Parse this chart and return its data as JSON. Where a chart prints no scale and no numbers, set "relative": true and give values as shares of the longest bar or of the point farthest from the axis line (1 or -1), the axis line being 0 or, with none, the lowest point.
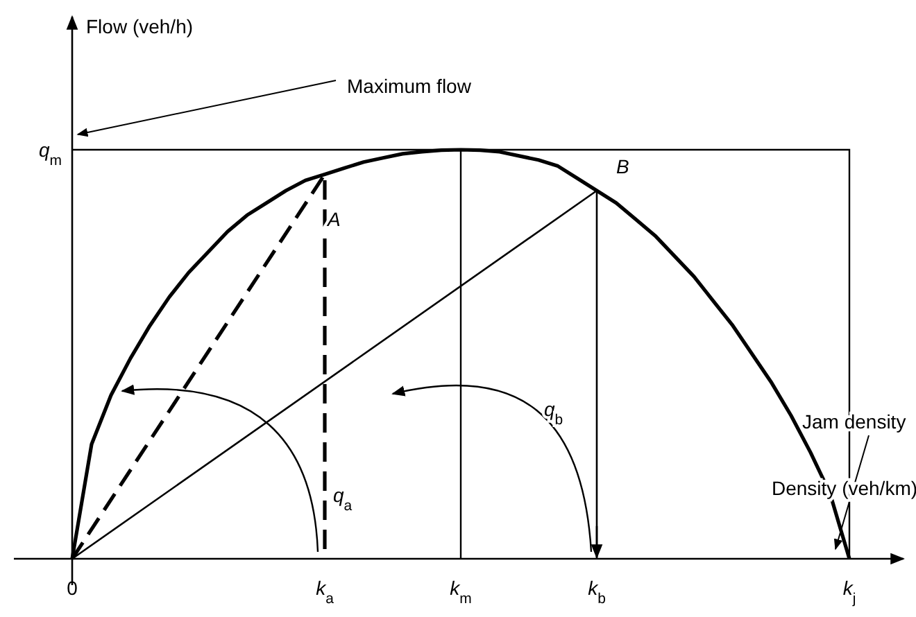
{
  "chart_data": {
    "type": "line",
    "relative": true,
    "xlabel": "Density (veh/km)",
    "categories": [
      "0",
      null,
      null,
      null,
      null,
      null,
      null,
      null,
      null,
      null,
      null,
      null,
      null,
      "k$_{a}$",
      null,
      null,
      null,
      null,
      null,
      null,
      "k$_{m}$",
      null,
      null,
      null,
      null,
      null,
      null,
      "k$_{b}$",
      null,
      null,
      null,
      null,
      null,
      null,
      null,
      null,
      null,
      null,
      null,
      null,
      "k$_{j}$"
    ],
    "series": [
      {
        "color": "#000000",
        "line_style": "solid",
        "values": [
          0,
          0.28,
          0.4,
          0.49,
          0.57,
          0.64,
          0.7,
          0.75,
          0.8,
          0.84,
          0.87,
          0.9,
          0.925,
          0.94,
          0.955,
          0.97,
          0.98,
          0.99,
          0.995,
          0.999,
          1,
          0.999,
          0.995,
          0.985,
          0.975,
          0.96,
          0.93,
          0.9,
          0.87,
          0.83,
          0.79,
          0.74,
          0.69,
          0.63,
          0.57,
          0.5,
          0.43,
          0.35,
          0.26,
          0.16,
          0
        ]
      },
      {
        "color": "#000000",
        "line_style": "dashed",
        "x": [
          "0",
          "k$_{a}$",
          "k$_{a}$"
        ],
        "values": [
          0,
          0.94,
          0
        ]
      },
      {
        "color": "#000000",
        "line_style": "solid",
        "x": [
          "0",
          "k$_{b}$",
          "k$_{b}$"
        ],
        "values": [
          0,
          0.9,
          0
        ]
      }
    ],
    "ref_lines": [
      {
        "axis": "x",
        "value": "k$_{m}$"
      }
    ],
    "annotations": [
      "Maximum flow",
      "Jam density",
      "A",
      "B",
      "q$_{a}$",
      "q$_{b}$",
      "Flow (veh/h)",
      "q$_{m}$"
    ]
  }
}
